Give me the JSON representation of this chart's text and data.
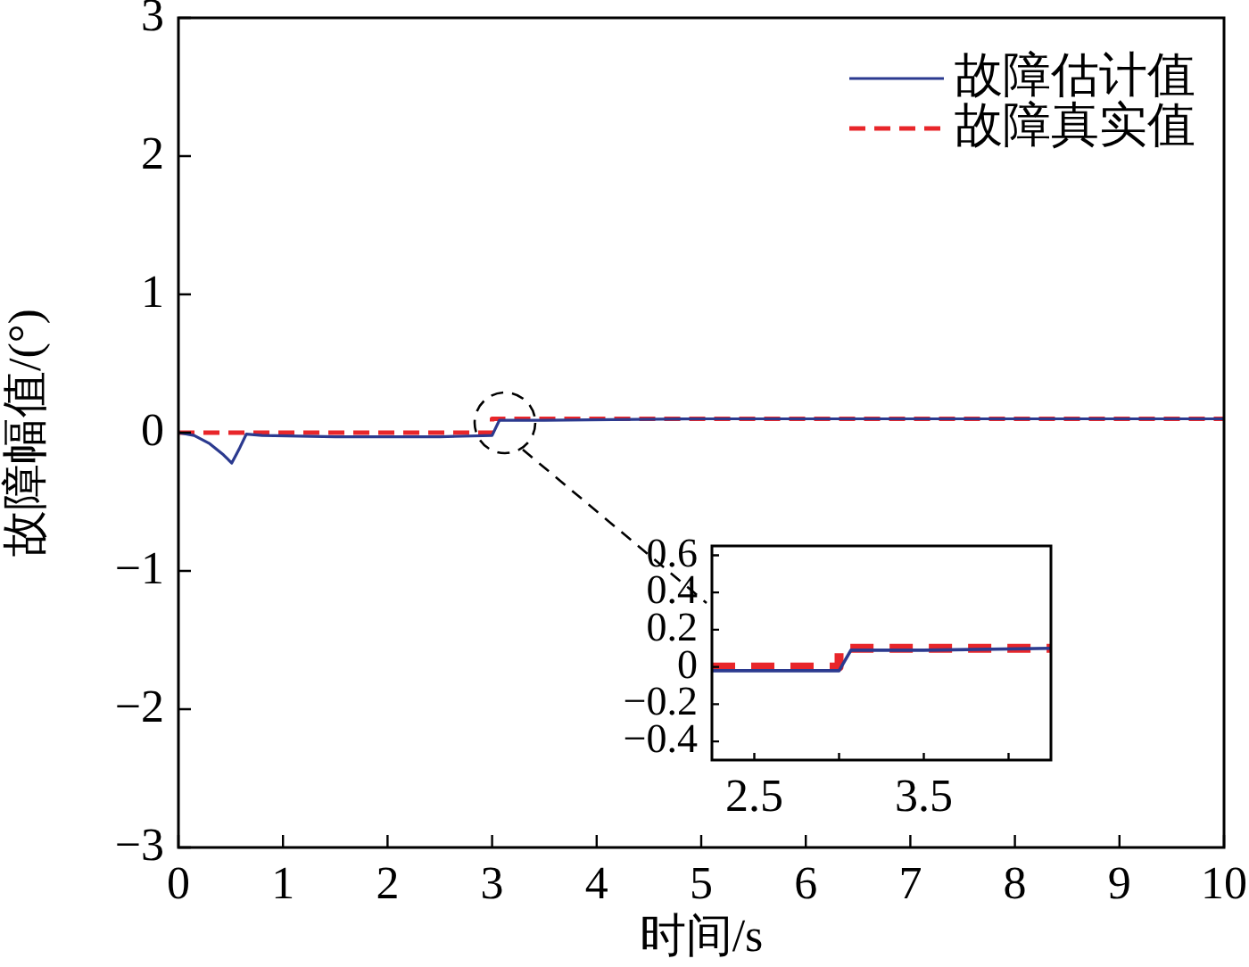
{
  "chart_data": [
    {
      "type": "line",
      "xlabel": "时间/s",
      "ylabel": "故障幅值/(°)",
      "xlim": [
        0,
        10
      ],
      "ylim": [
        -3,
        3
      ],
      "xticks": [
        0,
        1,
        2,
        3,
        4,
        5,
        6,
        7,
        8,
        9,
        10
      ],
      "yticks": [
        -3,
        -2,
        -1,
        0,
        1,
        2,
        3
      ],
      "legend": "top right",
      "series": [
        {
          "name": "故障估计值",
          "color": "#2b3a8f",
          "line_style": "solid",
          "x": [
            0,
            0.15,
            0.3,
            0.43,
            0.51,
            0.58,
            0.65,
            0.8,
            1.5,
            2,
            2.5,
            3,
            3.07,
            3.5,
            5,
            7,
            10
          ],
          "values": [
            0,
            -0.02,
            -0.08,
            -0.16,
            -0.22,
            -0.12,
            -0.01,
            -0.02,
            -0.03,
            -0.03,
            -0.03,
            -0.02,
            0.09,
            0.09,
            0.1,
            0.1,
            0.1
          ]
        },
        {
          "name": "故障真实值",
          "color": "#e8262a",
          "line_style": "dashed",
          "x": [
            0,
            3,
            3,
            10
          ],
          "values": [
            0,
            0,
            0.1,
            0.1
          ]
        }
      ]
    },
    {
      "type": "line",
      "xlim": [
        2.25,
        4.25
      ],
      "ylim": [
        -0.5,
        0.65
      ],
      "xticks": [
        2.5,
        {
          "value": 3,
          "label": null
        },
        3.5,
        {
          "value": 4,
          "label": null
        }
      ],
      "yticks": [
        -0.4,
        -0.2,
        0,
        0.2,
        0.4,
        0.6
      ],
      "series": [
        {
          "color": "#2b3a8f",
          "line_style": "solid",
          "x": [
            2.25,
            3,
            3.07,
            3.5,
            4.25
          ],
          "values": [
            -0.02,
            -0.02,
            0.09,
            0.09,
            0.1
          ]
        },
        {
          "color": "#e8262a",
          "line_style": "dashed",
          "x": [
            2.25,
            3,
            3,
            4.25
          ],
          "values": [
            0,
            0,
            0.1,
            0.1
          ]
        }
      ]
    }
  ]
}
